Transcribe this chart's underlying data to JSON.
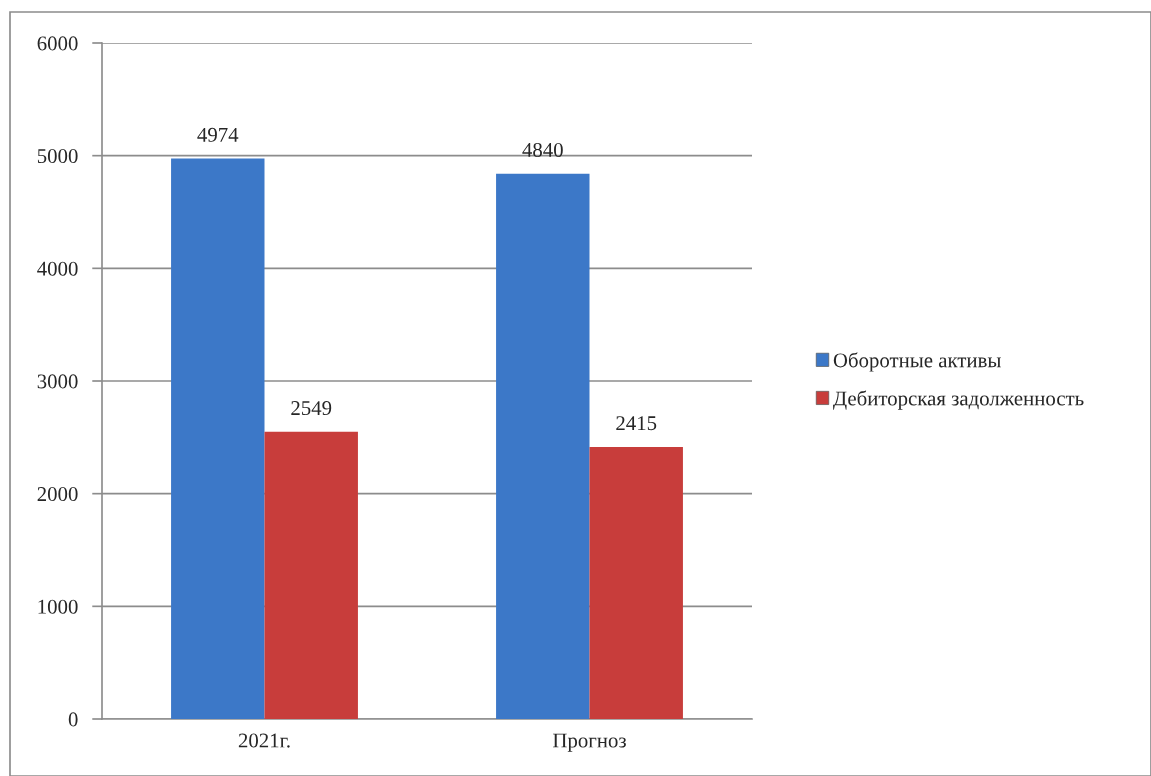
{
  "chart_data": {
    "type": "bar",
    "categories": [
      "2021г.",
      "Прогноз"
    ],
    "series": [
      {
        "name": "Оборотные активы",
        "color": "#3c78c8",
        "values": [
          4974,
          4840
        ]
      },
      {
        "name": "Дебиторская задолженность",
        "color": "#c83d3b",
        "values": [
          2549,
          2415
        ]
      }
    ],
    "ylim": [
      0,
      6000
    ],
    "yticks": [
      0,
      1000,
      2000,
      3000,
      4000,
      5000,
      6000
    ],
    "grid": "y",
    "legend": "right",
    "data_labels": true
  }
}
